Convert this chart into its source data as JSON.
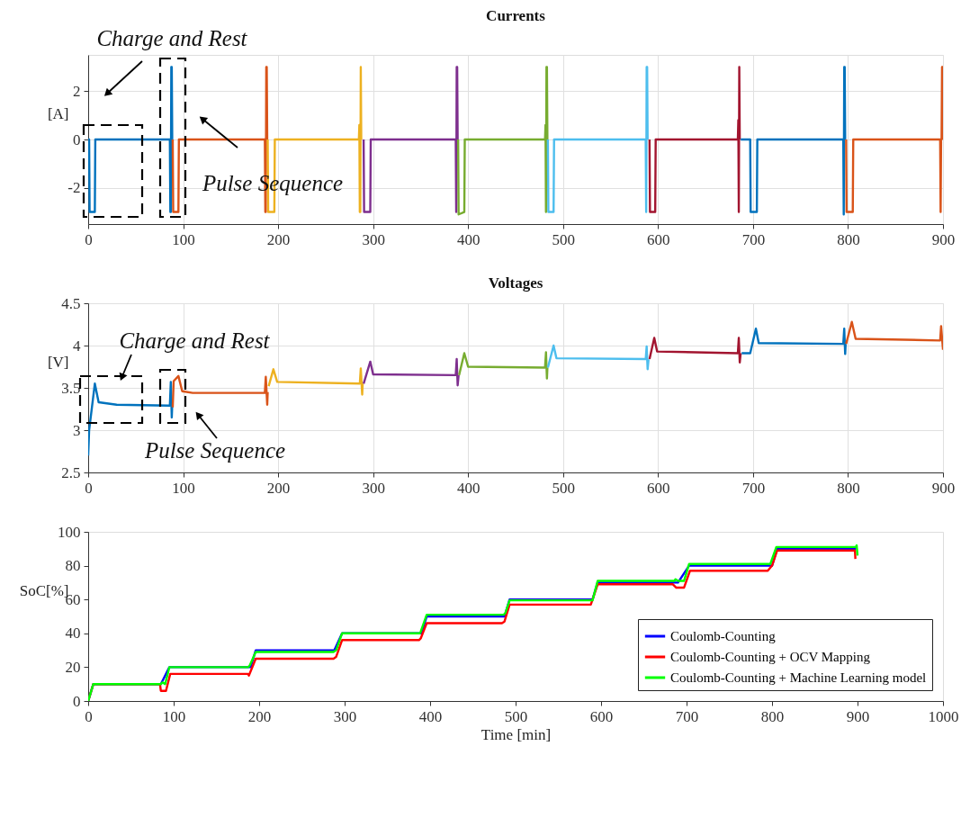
{
  "chart_data": [
    {
      "type": "line",
      "title": "Currents",
      "ylabel": "[A]",
      "xlim": [
        0,
        900
      ],
      "xticks": [
        0,
        100,
        200,
        300,
        400,
        500,
        600,
        700,
        800,
        900
      ],
      "ylim": [
        -3.5,
        3.5
      ],
      "yticks": [
        -2,
        0,
        2
      ],
      "grid": true,
      "legend": false,
      "annotations": [
        "Charge and Rest",
        "Pulse Sequence"
      ],
      "series": [
        {
          "color": "#0072bd",
          "x": [
            0,
            1,
            1.5,
            7,
            7.5,
            86,
            86.5,
            87,
            87.5,
            88,
            88.5
          ],
          "values": [
            0,
            0,
            -3,
            -3,
            0,
            0,
            -3,
            -3,
            3,
            3,
            0
          ]
        },
        {
          "color": "#d95319",
          "x": [
            89,
            89.5,
            95,
            95.5,
            186,
            186.5,
            187,
            187.5,
            188,
            188.5
          ],
          "values": [
            0,
            -3,
            -3,
            0,
            0,
            -3,
            -3,
            3,
            3,
            0
          ]
        },
        {
          "color": "#edb120",
          "x": [
            189,
            189.5,
            196,
            196.5,
            285,
            285.5,
            286,
            286.5,
            287,
            287.5
          ],
          "values": [
            0,
            -3,
            -3,
            0,
            0,
            0.6,
            -3,
            -3,
            3,
            0
          ]
        },
        {
          "color": "#7e2f8e",
          "x": [
            290,
            290.5,
            297,
            297.5,
            387,
            387.5,
            388,
            388.5,
            389
          ],
          "values": [
            0,
            -3,
            -3,
            0,
            0,
            -3,
            3,
            3,
            0
          ]
        },
        {
          "color": "#77ac30",
          "x": [
            389.5,
            390,
            396,
            396.5,
            481,
            481.5,
            482,
            482.5,
            483,
            483.5
          ],
          "values": [
            0,
            -3.1,
            -3,
            0,
            0,
            0.6,
            -3,
            3,
            3,
            0
          ]
        },
        {
          "color": "#4dbeee",
          "x": [
            484,
            484.5,
            490,
            490.5,
            587,
            587.5,
            588,
            588.5,
            589
          ],
          "values": [
            0,
            -3,
            -3,
            0,
            0,
            -3,
            3,
            3,
            0
          ]
        },
        {
          "color": "#a2142f",
          "x": [
            591,
            591.5,
            597,
            597.5,
            684,
            684.5,
            685,
            685.5,
            686
          ],
          "values": [
            0,
            -3,
            -3,
            0,
            0,
            0.8,
            -3,
            3,
            0
          ]
        },
        {
          "color": "#0072bd",
          "x": [
            687,
            697,
            697.5,
            704,
            704.5,
            795,
            795.5,
            796,
            796.5,
            797
          ],
          "values": [
            0,
            0,
            -3,
            -3,
            0,
            0,
            -3.1,
            3,
            3,
            0
          ]
        },
        {
          "color": "#d95319",
          "x": [
            798,
            798.5,
            805,
            805.5,
            897,
            897.5,
            898,
            898.5,
            899,
            899.5,
            900
          ],
          "values": [
            0,
            -3,
            -3,
            0,
            0,
            -3,
            0,
            0,
            3,
            3,
            0
          ]
        }
      ]
    },
    {
      "type": "line",
      "title": "Voltages",
      "ylabel": "[V]",
      "xlim": [
        0,
        900
      ],
      "xticks": [
        0,
        100,
        200,
        300,
        400,
        500,
        600,
        700,
        800,
        900
      ],
      "ylim": [
        2.5,
        4.5
      ],
      "yticks": [
        2.5,
        3,
        3.5,
        4,
        4.5
      ],
      "grid": true,
      "legend": false,
      "annotations": [
        "Charge and Rest",
        "Pulse Sequence"
      ],
      "series": [
        {
          "color": "#0072bd",
          "x": [
            0,
            1,
            7,
            11,
            30,
            86,
            87,
            88,
            88.5
          ],
          "values": [
            2.7,
            3.0,
            3.55,
            3.33,
            3.3,
            3.29,
            3.57,
            3.15,
            3.3
          ]
        },
        {
          "color": "#d95319",
          "x": [
            89,
            90,
            95,
            99,
            110,
            186,
            187,
            188.5,
            189
          ],
          "values": [
            3.27,
            3.58,
            3.64,
            3.46,
            3.44,
            3.44,
            3.63,
            3.3,
            3.45
          ]
        },
        {
          "color": "#edb120",
          "x": [
            190,
            195,
            199,
            286,
            287,
            288.5,
            289
          ],
          "values": [
            3.52,
            3.72,
            3.57,
            3.55,
            3.73,
            3.42,
            3.55
          ]
        },
        {
          "color": "#7e2f8e",
          "x": [
            290,
            297,
            300,
            387,
            388,
            389,
            390
          ],
          "values": [
            3.55,
            3.81,
            3.66,
            3.65,
            3.84,
            3.53,
            3.65
          ]
        },
        {
          "color": "#77ac30",
          "x": [
            390.5,
            396,
            400,
            481,
            482,
            483,
            483.5
          ],
          "values": [
            3.65,
            3.91,
            3.75,
            3.74,
            3.92,
            3.61,
            3.74
          ]
        },
        {
          "color": "#4dbeee",
          "x": [
            484,
            490,
            493,
            587,
            588,
            589,
            590
          ],
          "values": [
            3.74,
            4.0,
            3.85,
            3.84,
            3.99,
            3.72,
            3.84
          ]
        },
        {
          "color": "#a2142f",
          "x": [
            591,
            596,
            599,
            684,
            685,
            686,
            687
          ],
          "values": [
            3.84,
            4.09,
            3.93,
            3.91,
            4.09,
            3.8,
            3.91
          ]
        },
        {
          "color": "#0072bd",
          "x": [
            688,
            697,
            703,
            706,
            795,
            796,
            797,
            797.5
          ],
          "values": [
            3.91,
            3.91,
            4.2,
            4.03,
            4.02,
            4.2,
            3.9,
            4.02
          ]
        },
        {
          "color": "#d95319",
          "x": [
            798,
            804,
            808,
            897,
            898,
            900
          ],
          "values": [
            4.02,
            4.28,
            4.08,
            4.06,
            4.23,
            3.95
          ]
        }
      ]
    },
    {
      "type": "line",
      "xlabel": "Time [min]",
      "ylabel": "SoC[%]",
      "xlim": [
        0,
        1000
      ],
      "xticks": [
        0,
        100,
        200,
        300,
        400,
        500,
        600,
        700,
        800,
        900,
        1000
      ],
      "ylim": [
        0,
        100
      ],
      "yticks": [
        0,
        20,
        40,
        60,
        80,
        100
      ],
      "grid": false,
      "legend": "bottom right",
      "series": [
        {
          "name": "Coulomb-Counting",
          "color": "#0000ff",
          "x": [
            0,
            6,
            85,
            95,
            190,
            196,
            288,
            297,
            390,
            396,
            487,
            493,
            590,
            596,
            690,
            703,
            800,
            806,
            898
          ],
          "values": [
            0,
            10,
            10,
            20,
            20,
            30,
            30,
            40,
            40,
            50,
            50,
            60,
            60,
            70,
            70,
            80,
            80,
            90,
            90
          ]
        },
        {
          "name": "Coulomb-Counting + OCV Mapping",
          "color": "#ff0000",
          "x": [
            0,
            6,
            84,
            85,
            91,
            96,
            187,
            188,
            196,
            287,
            290,
            297,
            387,
            389,
            396,
            484,
            487,
            493,
            588,
            596,
            684,
            688,
            697,
            704,
            795,
            800,
            806,
            897,
            897.5
          ],
          "values": [
            0,
            10,
            10,
            6,
            6,
            16,
            16,
            15,
            25,
            25,
            26,
            36,
            36,
            37,
            46,
            46,
            47,
            57,
            57,
            69,
            69,
            67,
            67,
            77,
            77,
            80,
            89,
            89,
            84
          ]
        },
        {
          "name": "Coulomb-Counting + Machine Learning model",
          "color": "#00ff00",
          "x": [
            0,
            6,
            85,
            87,
            90,
            95,
            187,
            189,
            196,
            287,
            290,
            297,
            388,
            389,
            396,
            486,
            488,
            493,
            590,
            596,
            686,
            687,
            690,
            697,
            703,
            798,
            805,
            898,
            899,
            900
          ],
          "values": [
            0,
            10,
            10,
            11,
            10,
            20,
            20,
            21,
            29,
            29,
            30,
            40,
            40,
            41,
            51,
            51,
            52,
            59.5,
            59.5,
            71,
            71,
            72,
            71,
            71,
            81,
            81,
            91,
            91,
            92,
            86
          ]
        }
      ]
    }
  ]
}
